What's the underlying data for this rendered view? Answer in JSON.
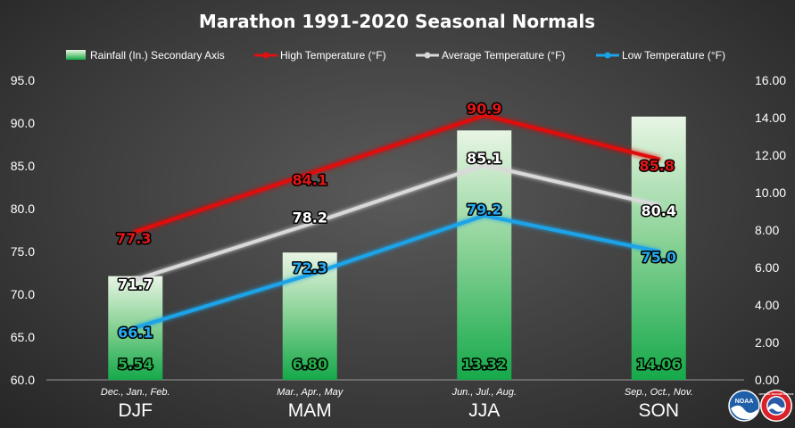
{
  "chart_data": {
    "type": "bar+line",
    "title": "Marathon 1991-2020 Seasonal Normals",
    "categories": [
      "DJF",
      "MAM",
      "JJA",
      "SON"
    ],
    "category_sublabels": [
      "Dec., Jan., Feb.",
      "Mar., Apr., May",
      "Jun., Jul., Aug.",
      "Sep., Oct., Nov."
    ],
    "y_left": {
      "min": 60,
      "max": 95,
      "step": 5,
      "ticks": [
        "60.0",
        "65.0",
        "70.0",
        "75.0",
        "80.0",
        "85.0",
        "90.0",
        "95.0"
      ]
    },
    "y_right": {
      "min": 0,
      "max": 16,
      "step": 2,
      "ticks": [
        "0.00",
        "2.00",
        "4.00",
        "6.00",
        "8.00",
        "10.00",
        "12.00",
        "14.00",
        "16.00"
      ]
    },
    "legend_position": "top",
    "grid": false,
    "series": [
      {
        "name": "Rainfall (In.) Secondary Axis",
        "kind": "bar",
        "axis": "right",
        "color": "#22b14c",
        "values": [
          5.54,
          6.8,
          13.32,
          14.06
        ],
        "labels": [
          "5.54",
          "6.80",
          "13.32",
          "14.06"
        ],
        "label_color": "#22b14c"
      },
      {
        "name": "High Temperature (°F)",
        "kind": "line",
        "axis": "left",
        "color": "#e01010",
        "values": [
          77.3,
          84.1,
          90.9,
          85.8
        ],
        "labels": [
          "77.3",
          "84.1",
          "90.9",
          "85.8"
        ],
        "label_color": "#e01818"
      },
      {
        "name": "Average Temperature (°F)",
        "kind": "line",
        "axis": "left",
        "color": "#d9d9d9",
        "values": [
          71.7,
          78.2,
          85.1,
          80.4
        ],
        "labels": [
          "71.7",
          "78.2",
          "85.1",
          "80.4"
        ],
        "label_color": "#ffffff"
      },
      {
        "name": "Low Temperature (°F)",
        "kind": "line",
        "axis": "left",
        "color": "#1aa3e8",
        "values": [
          66.1,
          72.3,
          79.2,
          75.0
        ],
        "labels": [
          "66.1",
          "72.3",
          "79.2",
          "75.0"
        ],
        "label_color": "#27aaf0"
      }
    ]
  },
  "logos": {
    "noaa_text": "NOAA",
    "nws_text": "NATIONAL WEATHER SERVICE"
  }
}
